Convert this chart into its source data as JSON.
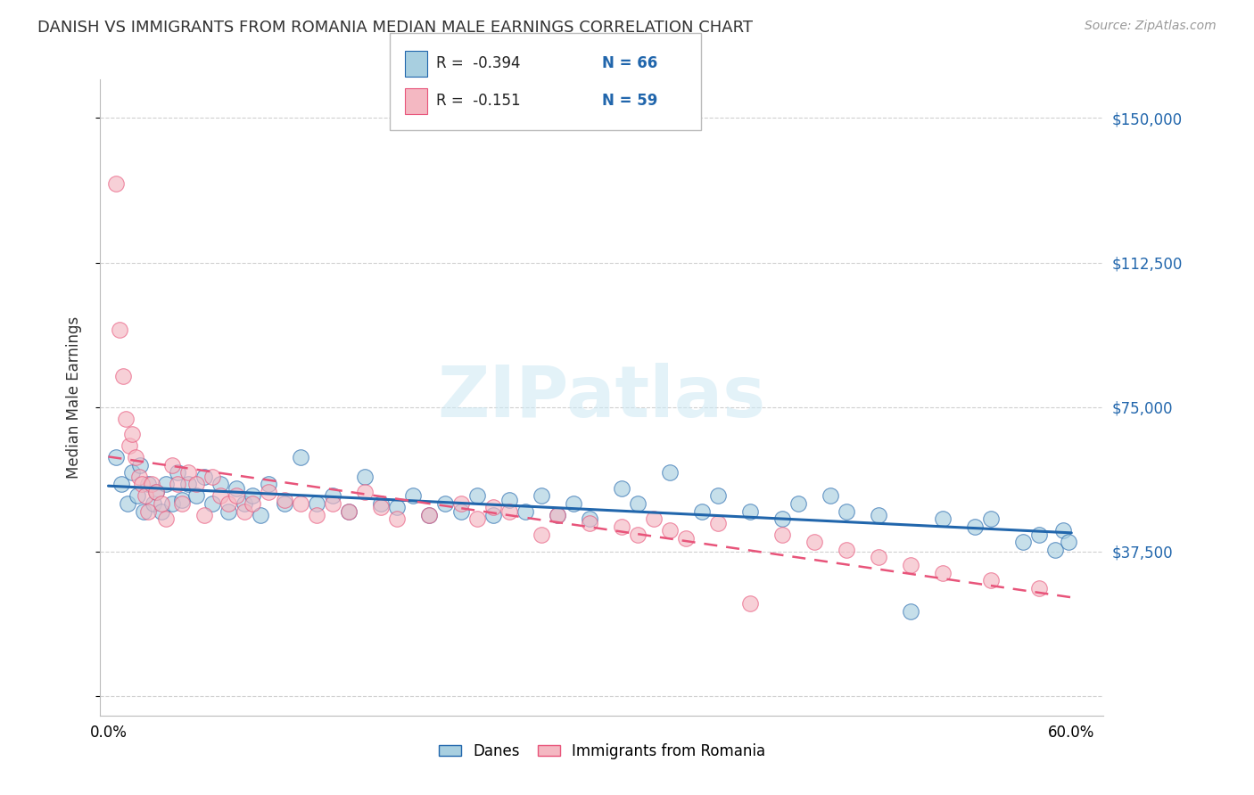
{
  "title": "DANISH VS IMMIGRANTS FROM ROMANIA MEDIAN MALE EARNINGS CORRELATION CHART",
  "source_text": "Source: ZipAtlas.com",
  "ylabel": "Median Male Earnings",
  "watermark": "ZIPatlas",
  "legend_r1": "R =  -0.394",
  "legend_n1": "N = 66",
  "legend_r2": "R =  -0.151",
  "legend_n2": "N = 59",
  "legend_label1": "Danes",
  "legend_label2": "Immigrants from Romania",
  "xlim": [
    -0.005,
    0.62
  ],
  "ylim": [
    -5000,
    160000
  ],
  "yticks": [
    0,
    37500,
    75000,
    112500,
    150000
  ],
  "ytick_labels": [
    "",
    "$37,500",
    "$75,000",
    "$112,500",
    "$150,000"
  ],
  "xtick_vals": [
    0.0,
    0.6
  ],
  "xtick_labels": [
    "0.0%",
    "60.0%"
  ],
  "color_danes": "#a8cfe0",
  "color_romania": "#f4b8c2",
  "color_danes_line": "#2166ac",
  "color_romania_line": "#e8547a",
  "background_color": "#ffffff",
  "grid_color": "#d0d0d0",
  "danes_x": [
    0.005,
    0.008,
    0.012,
    0.015,
    0.018,
    0.02,
    0.022,
    0.025,
    0.028,
    0.03,
    0.033,
    0.036,
    0.04,
    0.043,
    0.046,
    0.05,
    0.055,
    0.06,
    0.065,
    0.07,
    0.075,
    0.08,
    0.085,
    0.09,
    0.095,
    0.1,
    0.11,
    0.12,
    0.13,
    0.14,
    0.15,
    0.16,
    0.17,
    0.18,
    0.19,
    0.2,
    0.21,
    0.22,
    0.23,
    0.24,
    0.25,
    0.26,
    0.27,
    0.28,
    0.29,
    0.3,
    0.32,
    0.33,
    0.35,
    0.37,
    0.38,
    0.4,
    0.42,
    0.43,
    0.45,
    0.46,
    0.48,
    0.5,
    0.52,
    0.54,
    0.55,
    0.57,
    0.58,
    0.59,
    0.595,
    0.598
  ],
  "danes_y": [
    62000,
    55000,
    50000,
    58000,
    52000,
    60000,
    48000,
    55000,
    50000,
    53000,
    48000,
    55000,
    50000,
    58000,
    51000,
    55000,
    52000,
    57000,
    50000,
    55000,
    48000,
    54000,
    50000,
    52000,
    47000,
    55000,
    50000,
    62000,
    50000,
    52000,
    48000,
    57000,
    50000,
    49000,
    52000,
    47000,
    50000,
    48000,
    52000,
    47000,
    51000,
    48000,
    52000,
    47000,
    50000,
    46000,
    54000,
    50000,
    58000,
    48000,
    52000,
    48000,
    46000,
    50000,
    52000,
    48000,
    47000,
    22000,
    46000,
    44000,
    46000,
    40000,
    42000,
    38000,
    43000,
    40000
  ],
  "romania_x": [
    0.005,
    0.007,
    0.009,
    0.011,
    0.013,
    0.015,
    0.017,
    0.019,
    0.021,
    0.023,
    0.025,
    0.027,
    0.03,
    0.033,
    0.036,
    0.04,
    0.043,
    0.046,
    0.05,
    0.055,
    0.06,
    0.065,
    0.07,
    0.075,
    0.08,
    0.085,
    0.09,
    0.1,
    0.11,
    0.12,
    0.13,
    0.14,
    0.15,
    0.16,
    0.17,
    0.18,
    0.2,
    0.22,
    0.23,
    0.24,
    0.25,
    0.27,
    0.28,
    0.3,
    0.32,
    0.33,
    0.34,
    0.35,
    0.36,
    0.38,
    0.4,
    0.42,
    0.44,
    0.46,
    0.48,
    0.5,
    0.52,
    0.55,
    0.58
  ],
  "romania_y": [
    133000,
    95000,
    83000,
    72000,
    65000,
    68000,
    62000,
    57000,
    55000,
    52000,
    48000,
    55000,
    53000,
    50000,
    46000,
    60000,
    55000,
    50000,
    58000,
    55000,
    47000,
    57000,
    52000,
    50000,
    52000,
    48000,
    50000,
    53000,
    51000,
    50000,
    47000,
    50000,
    48000,
    53000,
    49000,
    46000,
    47000,
    50000,
    46000,
    49000,
    48000,
    42000,
    47000,
    45000,
    44000,
    42000,
    46000,
    43000,
    41000,
    45000,
    24000,
    42000,
    40000,
    38000,
    36000,
    34000,
    32000,
    30000,
    28000
  ]
}
